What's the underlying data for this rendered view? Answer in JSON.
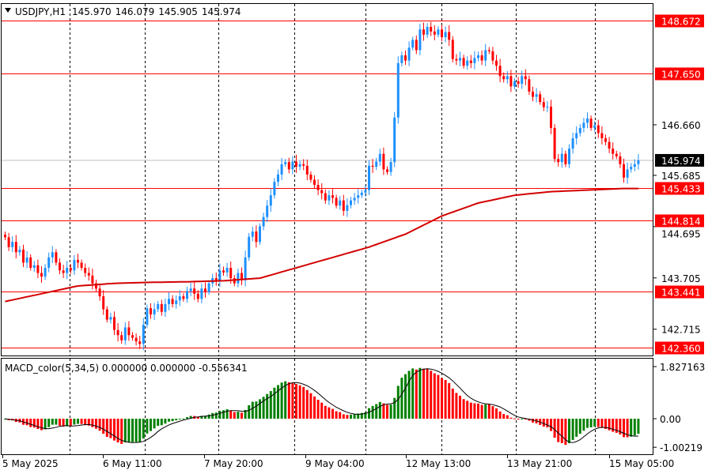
{
  "header": {
    "symbol_tf": "USDJPY,H1",
    "open": "145.970",
    "high": "146.079",
    "low": "145.905",
    "close": "145.974"
  },
  "macd_header": "MACD_color(5,34,5) 0.000000 0.000000 -0.556341",
  "colors": {
    "bull": "#1E90FF",
    "bear": "#FF0000",
    "ma": "#D40000",
    "level": "#FF0000",
    "hist_up": "#008000",
    "hist_down": "#FF0000",
    "signal": "#000000"
  },
  "chart_data": [
    {
      "type": "candlestick",
      "symbol": "USDJPY",
      "timeframe": "H1",
      "ylim": [
        142.2,
        148.75
      ],
      "price_ticks": [
        "146.660",
        "145.685",
        "144.695",
        "143.705",
        "142.715"
      ],
      "current_price": "145.974",
      "levels": [
        "148.672",
        "147.650",
        "145.433",
        "144.814",
        "143.441",
        "142.360"
      ],
      "x_tick_labels": [
        "5 May 2025",
        "6 May 11:00",
        "7 May 20:00",
        "9 May 04:00",
        "12 May 13:00",
        "13 May 21:00",
        "15 May 05:00"
      ],
      "grid": "vertical-dashed",
      "closes": [
        144.49,
        144.3,
        144.4,
        144.2,
        144.25,
        144.0,
        144.1,
        143.9,
        143.95,
        143.8,
        143.73,
        143.9,
        144.1,
        144.2,
        144.0,
        143.85,
        143.8,
        143.9,
        143.85,
        144.05,
        144.0,
        143.9,
        143.8,
        143.75,
        143.6,
        143.5,
        143.35,
        143.1,
        142.9,
        142.95,
        142.7,
        142.6,
        142.5,
        142.75,
        142.6,
        142.55,
        142.48,
        142.43,
        142.8,
        143.12,
        143.0,
        143.1,
        143.2,
        143.05,
        143.2,
        143.3,
        143.2,
        143.27,
        143.35,
        143.3,
        143.45,
        143.5,
        143.4,
        143.3,
        143.5,
        143.43,
        143.6,
        143.7,
        143.65,
        143.85,
        143.81,
        143.9,
        143.7,
        143.6,
        143.8,
        143.66,
        144.1,
        144.5,
        144.6,
        144.4,
        144.7,
        144.88,
        145.1,
        145.3,
        145.56,
        145.7,
        145.9,
        145.94,
        145.8,
        145.95,
        145.85,
        145.9,
        145.87,
        145.7,
        145.6,
        145.5,
        145.4,
        145.34,
        145.2,
        145.3,
        145.25,
        145.1,
        145.2,
        145.0,
        145.11,
        145.2,
        145.25,
        145.3,
        145.35,
        145.4,
        145.87,
        145.85,
        145.95,
        146.1,
        145.8,
        145.75,
        145.94,
        146.8,
        147.85,
        148.0,
        147.9,
        148.15,
        148.3,
        148.1,
        148.5,
        148.4,
        148.55,
        148.46,
        148.4,
        148.5,
        148.35,
        148.45,
        148.3,
        147.93,
        147.9,
        147.95,
        147.8,
        147.9,
        147.85,
        147.95,
        148.0,
        147.9,
        148.1,
        148.08,
        147.9,
        147.8,
        147.6,
        147.54,
        147.6,
        147.4,
        147.5,
        147.45,
        147.6,
        147.54,
        147.3,
        147.2,
        147.25,
        147.1,
        147.0,
        147.01,
        146.6,
        146.0,
        145.94,
        146.1,
        145.9,
        146.2,
        146.4,
        146.5,
        146.6,
        146.7,
        146.78,
        146.6,
        146.65,
        146.5,
        146.4,
        146.33,
        146.2,
        146.1,
        146.05,
        145.9,
        145.64,
        145.8,
        145.85,
        145.9,
        145.974
      ],
      "moving_average_every_10_bars": [
        143.25,
        143.4,
        143.55,
        143.6,
        143.62,
        143.63,
        143.65,
        143.7,
        143.9,
        144.1,
        144.3,
        144.55,
        144.9,
        145.15,
        145.3,
        145.37,
        145.4,
        145.43
      ]
    },
    {
      "type": "bar",
      "indicator": "MACD_color(5,34,5)",
      "ylim": [
        -1.00219,
        1.827163
      ],
      "ticks": [
        "1.827163",
        "0.00",
        "-1.00219"
      ]
    }
  ]
}
